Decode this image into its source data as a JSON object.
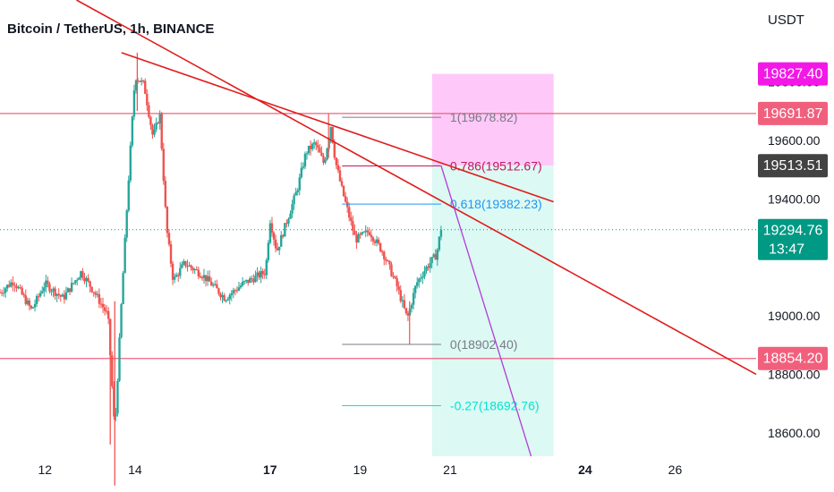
{
  "header": {
    "title": "Bitcoin / TetherUS, 1h, BINANCE",
    "currency": "USDT"
  },
  "colors": {
    "bull": "#26a69a",
    "bear": "#ef5350",
    "trendline": "#e01c1c",
    "horizontal": "#f0607d",
    "target_zone": "#fec0f8",
    "stop_zone": "#d8f8f2",
    "fib_main": "#131722",
    "fib_0786": "#c2185b",
    "fib_0618": "#2196f3",
    "fib_ext": "#00e5d4",
    "projection": "#b23bd6"
  },
  "chart_data": {
    "type": "candlestick",
    "title": "Bitcoin / TetherUS, 1h, BINANCE",
    "symbol": "BTCUSDT",
    "interval": "1h",
    "exchange": "BINANCE",
    "x_axis": {
      "ticks": [
        {
          "day": 12,
          "label": "12",
          "bold": false
        },
        {
          "day": 14,
          "label": "14",
          "bold": false
        },
        {
          "day": 17,
          "label": "17",
          "bold": true
        },
        {
          "day": 19,
          "label": "19",
          "bold": false
        },
        {
          "day": 21,
          "label": "21",
          "bold": false
        },
        {
          "day": 24,
          "label": "24",
          "bold": true
        },
        {
          "day": 26,
          "label": "26",
          "bold": false
        }
      ],
      "range_days": [
        11.0,
        27.8
      ]
    },
    "y_axis": {
      "unit": "USDT",
      "ticks": [
        "18600.00",
        "18800.00",
        "19000.00",
        "19400.00",
        "19600.00",
        "19800.00"
      ],
      "range": [
        18520,
        20080
      ]
    },
    "price_path": [
      [
        11.0,
        19080
      ],
      [
        11.3,
        19120
      ],
      [
        11.7,
        19020
      ],
      [
        12.0,
        19110
      ],
      [
        12.4,
        19060
      ],
      [
        12.8,
        19150
      ],
      [
        13.1,
        19080
      ],
      [
        13.4,
        19000
      ],
      [
        13.55,
        18600
      ],
      [
        13.7,
        19050
      ],
      [
        13.85,
        19450
      ],
      [
        14.0,
        19820
      ],
      [
        14.2,
        19790
      ],
      [
        14.4,
        19610
      ],
      [
        14.55,
        19690
      ],
      [
        14.7,
        19300
      ],
      [
        14.85,
        19120
      ],
      [
        15.1,
        19180
      ],
      [
        15.5,
        19140
      ],
      [
        16.0,
        19060
      ],
      [
        16.4,
        19110
      ],
      [
        16.9,
        19150
      ],
      [
        17.0,
        19330
      ],
      [
        17.15,
        19220
      ],
      [
        17.3,
        19290
      ],
      [
        17.6,
        19430
      ],
      [
        17.8,
        19560
      ],
      [
        18.0,
        19590
      ],
      [
        18.2,
        19520
      ],
      [
        18.35,
        19650
      ],
      [
        18.45,
        19530
      ],
      [
        18.6,
        19430
      ],
      [
        18.9,
        19260
      ],
      [
        19.2,
        19290
      ],
      [
        19.5,
        19220
      ],
      [
        19.8,
        19110
      ],
      [
        20.05,
        18990
      ],
      [
        20.25,
        19110
      ],
      [
        20.45,
        19160
      ],
      [
        20.7,
        19210
      ],
      [
        20.8,
        19300
      ]
    ],
    "extremes": {
      "spike_high": {
        "day": 14.05,
        "price": 19900
      },
      "spike_low": {
        "day": 13.55,
        "price": 18420
      },
      "swing_high": {
        "day": 18.3,
        "price": 19690
      },
      "swing_low": {
        "day": 20.1,
        "price": 18902.4
      }
    },
    "horizontal_lines": [
      {
        "price": 19691.87
      },
      {
        "price": 18854.2
      }
    ],
    "current_price_line": {
      "price": 19294.76,
      "style": "dotted"
    },
    "price_labels": [
      {
        "price": 19827.4,
        "text": "19827.40",
        "bg": "#f219e6",
        "fg": "#ffffff"
      },
      {
        "price": 19691.87,
        "text": "19691.87",
        "bg": "#f0607d",
        "fg": "#ffffff"
      },
      {
        "price": 19513.51,
        "text": "19513.51",
        "bg": "#424242",
        "fg": "#ffffff"
      },
      {
        "price": 19294.76,
        "text": "19294.76",
        "sub": "13:47",
        "bg": "#009984",
        "fg": "#ffffff"
      },
      {
        "price": 18854.2,
        "text": "18854.20",
        "bg": "#f0607d",
        "fg": "#ffffff"
      }
    ],
    "trendlines": [
      {
        "from": [
          12.7,
          20080
        ],
        "to": [
          27.8,
          18800
        ]
      },
      {
        "from": [
          13.7,
          19900
        ],
        "to": [
          23.3,
          19390
        ]
      }
    ],
    "fibonacci": {
      "start_day": 18.6,
      "end_day": 20.8,
      "levels": [
        {
          "ratio": "1",
          "label": "1(19678.82)",
          "price": 19678.82,
          "color": "#787b86"
        },
        {
          "ratio": "0.786",
          "label": "0.786(19512.67)",
          "price": 19512.67,
          "color": "#c2185b"
        },
        {
          "ratio": "0.618",
          "label": "0.618(19382.23)",
          "price": 19382.23,
          "color": "#2196f3"
        },
        {
          "ratio": "0",
          "label": "0(18902.40)",
          "price": 18902.4,
          "color": "#787b86"
        },
        {
          "ratio": "-0.27",
          "label": "-0.27(18692.76)",
          "price": 18692.76,
          "color": "#00e5d4"
        }
      ]
    },
    "position_tool": {
      "day_start": 20.6,
      "day_end": 23.3,
      "entry": 19513.51,
      "stop": 19827.4,
      "target_below": 18520
    },
    "projection_line": {
      "from": [
        20.8,
        19513.51
      ],
      "to": [
        22.8,
        18520
      ]
    },
    "grid": false,
    "legend": "none"
  }
}
